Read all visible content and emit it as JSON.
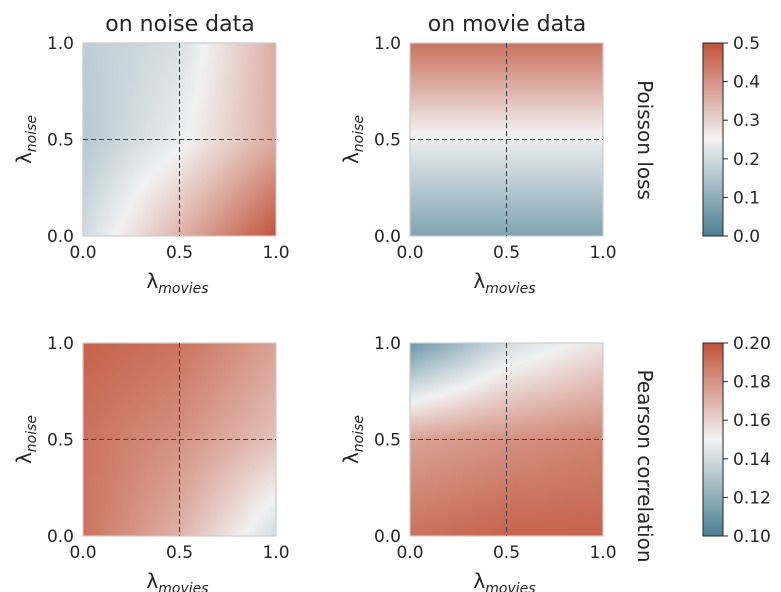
{
  "colormap": {
    "low": "#4a7f96",
    "mid": "#f2f2f2",
    "high": "#c1533a"
  },
  "chart_data": [
    {
      "type": "heatmap",
      "title": "on noise data",
      "row_label": "Poisson loss",
      "xlabel": "λ",
      "xlabel_sub": "movies",
      "ylabel": "λ",
      "ylabel_sub": "noise",
      "xlim": [
        0,
        1
      ],
      "ylim": [
        0,
        1
      ],
      "xticks": [
        "0.0",
        "0.5",
        "1.0"
      ],
      "yticks": [
        "0.0",
        "0.5",
        "1.0"
      ],
      "reference_lines": {
        "x": 0.5,
        "y": 0.5
      },
      "grid_x": [
        0,
        0.5,
        1
      ],
      "grid_y": [
        0,
        0.5,
        1
      ],
      "z": [
        [
          0.2,
          0.35,
          0.5
        ],
        [
          0.16,
          0.24,
          0.36
        ],
        [
          0.17,
          0.21,
          0.36
        ]
      ],
      "vmin": 0.0,
      "vmax": 0.5
    },
    {
      "type": "heatmap",
      "title": "on movie data",
      "row_label": "Poisson loss",
      "xlabel": "λ",
      "xlabel_sub": "movies",
      "ylabel": "λ",
      "ylabel_sub": "noise",
      "xlim": [
        0,
        1
      ],
      "ylim": [
        0,
        1
      ],
      "xticks": [
        "0.0",
        "0.5",
        "1.0"
      ],
      "yticks": [
        "0.0",
        "0.5",
        "1.0"
      ],
      "reference_lines": {
        "x": 0.5,
        "y": 0.5
      },
      "grid_x": [
        0,
        0.5,
        1
      ],
      "grid_y": [
        0,
        0.5,
        1
      ],
      "z": [
        [
          0.08,
          0.08,
          0.08
        ],
        [
          0.24,
          0.24,
          0.24
        ],
        [
          0.45,
          0.45,
          0.45
        ]
      ],
      "vmin": 0.0,
      "vmax": 0.5
    },
    {
      "type": "heatmap",
      "title": "",
      "row_label": "Pearson correlation",
      "xlabel": "λ",
      "xlabel_sub": "movies",
      "ylabel": "λ",
      "ylabel_sub": "noise",
      "xlim": [
        0,
        1
      ],
      "ylim": [
        0,
        1
      ],
      "xticks": [
        "0.0",
        "0.5",
        "1.0"
      ],
      "yticks": [
        "0.0",
        "0.5",
        "1.0"
      ],
      "reference_lines": {
        "x": 0.5,
        "y": 0.5
      },
      "grid_x": [
        0,
        0.5,
        1
      ],
      "grid_y": [
        0,
        0.5,
        1
      ],
      "z": [
        [
          0.19,
          0.17,
          0.14
        ],
        [
          0.19,
          0.18,
          0.165
        ],
        [
          0.195,
          0.19,
          0.175
        ]
      ],
      "vmin": 0.1,
      "vmax": 0.2
    },
    {
      "type": "heatmap",
      "title": "",
      "row_label": "Pearson correlation",
      "xlabel": "λ",
      "xlabel_sub": "movies",
      "ylabel": "λ",
      "ylabel_sub": "noise",
      "xlim": [
        0,
        1
      ],
      "ylim": [
        0,
        1
      ],
      "xticks": [
        "0.0",
        "0.5",
        "1.0"
      ],
      "yticks": [
        "0.0",
        "0.5",
        "1.0"
      ],
      "reference_lines": {
        "x": 0.5,
        "y": 0.5
      },
      "grid_x": [
        0,
        0.5,
        1
      ],
      "grid_y": [
        0,
        0.5,
        1
      ],
      "z": [
        [
          0.19,
          0.195,
          0.195
        ],
        [
          0.175,
          0.18,
          0.185
        ],
        [
          0.11,
          0.14,
          0.155
        ]
      ],
      "vmin": 0.1,
      "vmax": 0.2
    }
  ],
  "colorbars": [
    {
      "name": "Poisson loss",
      "vmin": 0.0,
      "vmax": 0.5,
      "ticks": [
        "0.0",
        "0.1",
        "0.2",
        "0.3",
        "0.4",
        "0.5"
      ]
    },
    {
      "name": "Pearson correlation",
      "vmin": 0.1,
      "vmax": 0.2,
      "ticks": [
        "0.10",
        "0.12",
        "0.14",
        "0.16",
        "0.18",
        "0.20"
      ]
    }
  ]
}
